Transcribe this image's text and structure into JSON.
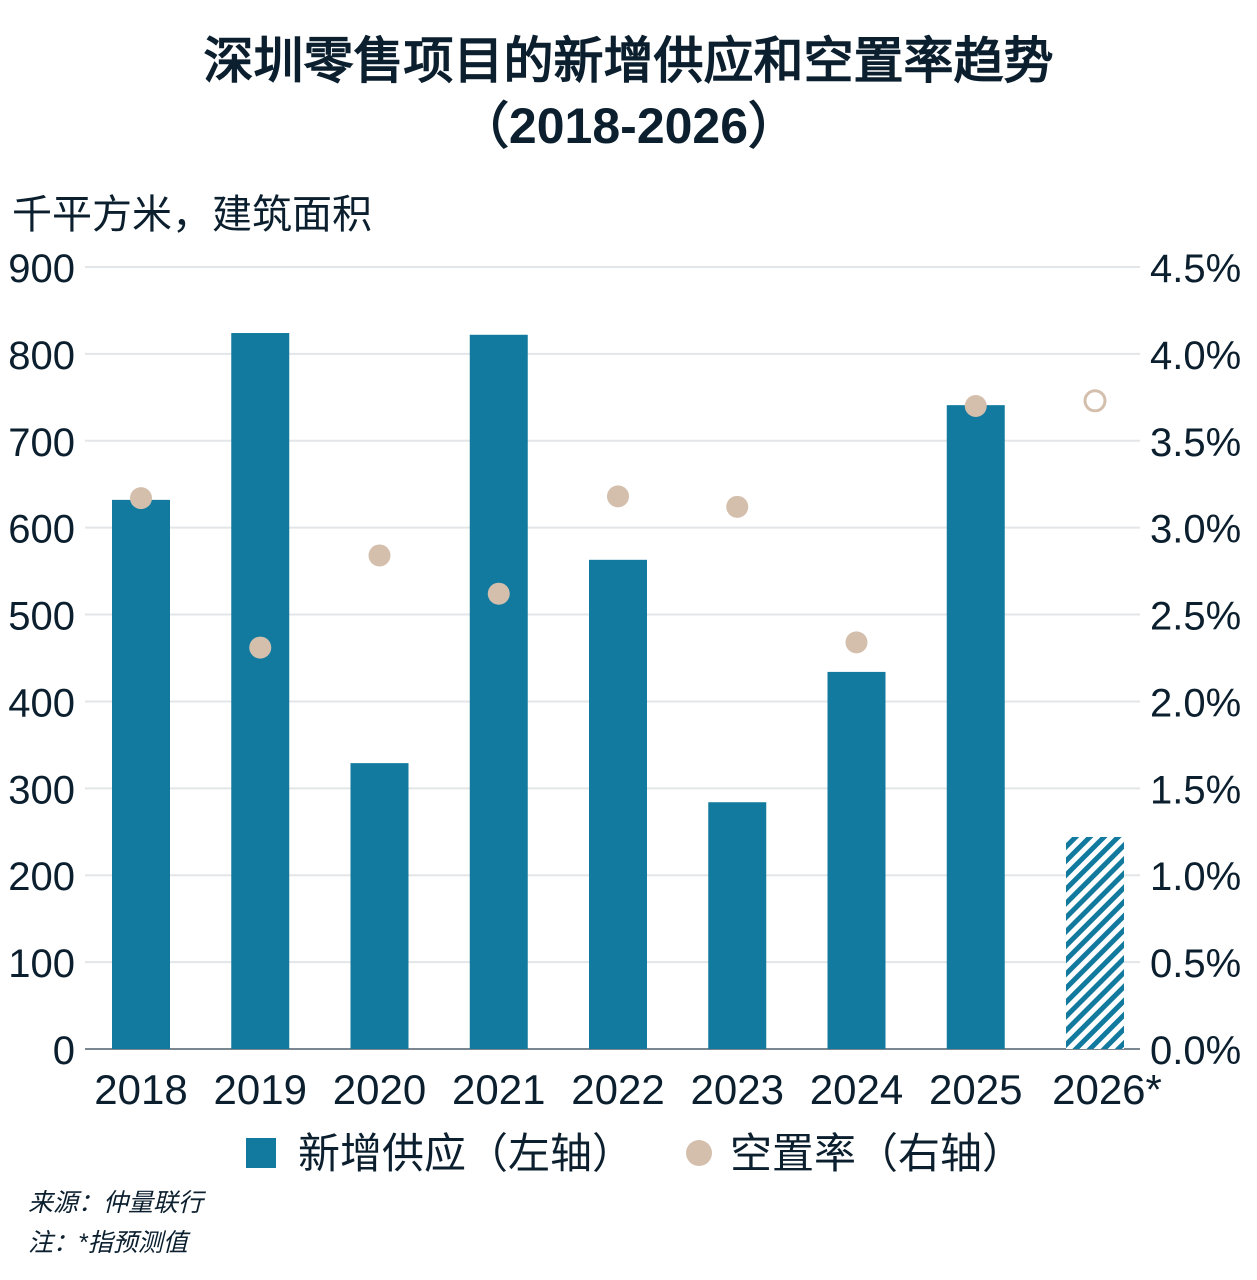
{
  "chart_data": {
    "type": "bar+scatter",
    "title": "深圳零售项目的新增供应和空置率趋势",
    "subtitle": "（2018-2026）",
    "ylabel": "千平方米，建筑面积",
    "categories": [
      "2018",
      "2019",
      "2020",
      "2021",
      "2022",
      "2023",
      "2024",
      "2025",
      "2026*"
    ],
    "ylim": [
      0,
      900
    ],
    "yticks": [
      "0",
      "100",
      "200",
      "300",
      "400",
      "500",
      "600",
      "700",
      "800",
      "900"
    ],
    "y2lim": [
      0,
      4.5
    ],
    "y2ticks": [
      "0.0%",
      "0.5%",
      "1.0%",
      "1.5%",
      "2.0%",
      "2.5%",
      "3.0%",
      "3.5%",
      "4.0%",
      "4.5%"
    ],
    "grid": true,
    "legend_position": "bottom",
    "series": [
      {
        "name": "新增供应（左轴）",
        "type": "bar",
        "axis": "left",
        "color": "#127a9e",
        "values": [
          632,
          824,
          329,
          822,
          563,
          284,
          434,
          741,
          244
        ],
        "forecast": [
          false,
          false,
          false,
          false,
          false,
          false,
          false,
          false,
          true
        ]
      },
      {
        "name": "空置率（右轴）",
        "type": "scatter",
        "axis": "right",
        "color": "#d4bfad",
        "values": [
          3.17,
          2.31,
          2.84,
          2.62,
          3.18,
          3.12,
          2.34,
          3.7,
          3.73
        ],
        "forecast": [
          false,
          false,
          false,
          false,
          false,
          false,
          false,
          false,
          true
        ]
      }
    ]
  },
  "footer": {
    "source": "来源：仲量联行",
    "note": "注：*指预测值"
  }
}
